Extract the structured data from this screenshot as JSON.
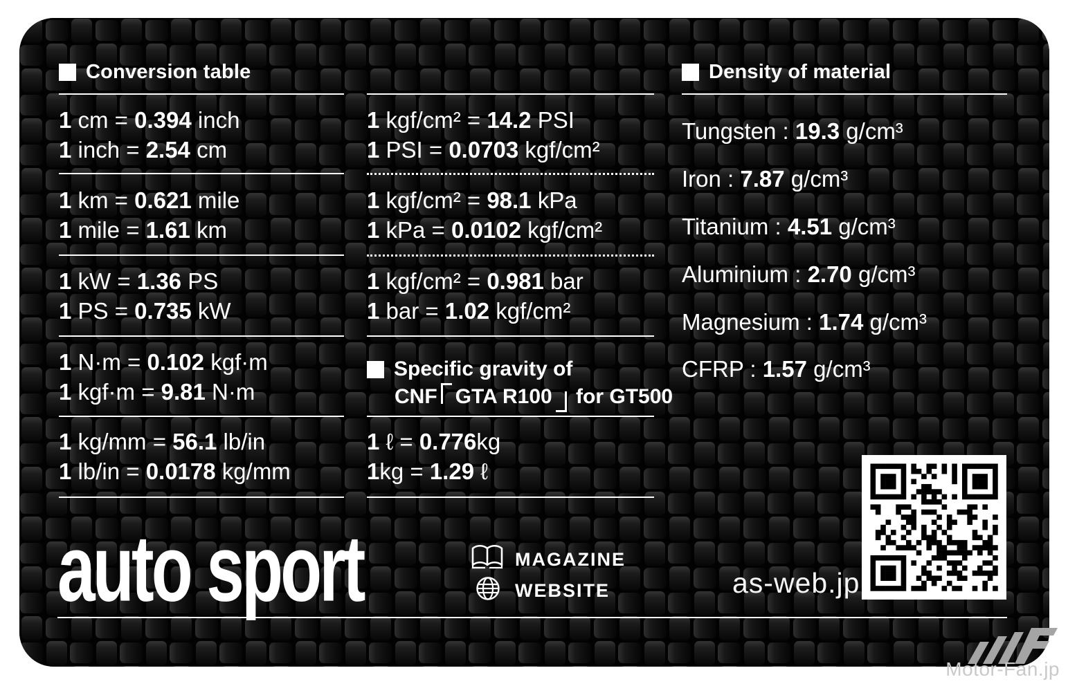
{
  "colors": {
    "card_base": "#050505",
    "text": "#ffffff",
    "watermark_gray": "#a5a5a5",
    "watermark_text_gray": "#c9c9c9"
  },
  "card": {
    "conversion": {
      "title": "Conversion table",
      "pairs": [
        {
          "rows": [
            {
              "n": "1",
              "lhs": " cm = ",
              "val": "0.394",
              "rhs": " inch"
            },
            {
              "n": "1",
              "lhs": " inch = ",
              "val": "2.54",
              "rhs": " cm"
            }
          ]
        },
        {
          "rows": [
            {
              "n": "1",
              "lhs": " km = ",
              "val": "0.621",
              "rhs": " mile"
            },
            {
              "n": "1",
              "lhs": " mile = ",
              "val": "1.61",
              "rhs": " km"
            }
          ]
        },
        {
          "rows": [
            {
              "n": "1",
              "lhs": " kW = ",
              "val": "1.36",
              "rhs": " PS"
            },
            {
              "n": "1",
              "lhs": " PS = ",
              "val": "0.735",
              "rhs": " kW"
            }
          ]
        },
        {
          "rows": [
            {
              "n": "1",
              "lhs": " N·m = ",
              "val": "0.102",
              "rhs": " kgf·m"
            },
            {
              "n": "1",
              "lhs": " kgf·m = ",
              "val": "9.81",
              "rhs": " N·m"
            }
          ]
        },
        {
          "rows": [
            {
              "n": "1",
              "lhs": " kg/mm = ",
              "val": "56.1",
              "rhs": " lb/in"
            },
            {
              "n": "1",
              "lhs": " lb/in = ",
              "val": "0.0178",
              "rhs": " kg/mm"
            }
          ]
        }
      ]
    },
    "pressure": {
      "pairs": [
        {
          "rows": [
            {
              "n": "1",
              "lhs": " kgf/cm² = ",
              "val": "14.2",
              "rhs": " PSI"
            },
            {
              "n": "1",
              "lhs": " PSI = ",
              "val": "0.0703",
              "rhs": " kgf/cm²"
            }
          ]
        },
        {
          "rows": [
            {
              "n": "1",
              "lhs": " kgf/cm² = ",
              "val": "98.1",
              "rhs": " kPa"
            },
            {
              "n": "1",
              "lhs": " kPa = ",
              "val": "0.0102",
              "rhs": " kgf/cm²"
            }
          ]
        },
        {
          "rows": [
            {
              "n": "1",
              "lhs": " kgf/cm² = ",
              "val": "0.981",
              "rhs": " bar"
            },
            {
              "n": "1",
              "lhs": " bar = ",
              "val": "1.02",
              "rhs": " kgf/cm²"
            }
          ]
        }
      ]
    },
    "specific_gravity": {
      "title_line1": "Specific gravity of",
      "title_pre": "CNF",
      "title_quoted": "GTA R100",
      "title_post": " for GT500",
      "rows": [
        {
          "n": "1",
          "lhs": " ℓ = ",
          "val": "0.776",
          "rhs": "kg"
        },
        {
          "n": "1",
          "lhs": "kg = ",
          "val": "1.29",
          "rhs": " ℓ"
        }
      ]
    },
    "density": {
      "title": "Density of material",
      "sep": " : ",
      "rows": [
        {
          "label": "Tungsten",
          "value": "19.3",
          "unit": " g/cm³"
        },
        {
          "label": "Iron",
          "value": "7.87",
          "unit": " g/cm³"
        },
        {
          "label": "Titanium",
          "value": "4.51",
          "unit": " g/cm³"
        },
        {
          "label": "Aluminium",
          "value": "2.70",
          "unit": " g/cm³"
        },
        {
          "label": "Magnesium",
          "value": "1.74",
          "unit": " g/cm³"
        },
        {
          "label": "CFRP",
          "value": "1.57",
          "unit": " g/cm³"
        }
      ]
    },
    "footer": {
      "logo": "auto sport",
      "magazine_label": "MAGAZINE",
      "website_label": "WEBSITE",
      "url": "as-web.jp"
    }
  },
  "watermark": {
    "text": "Motor-Fan.jp"
  }
}
